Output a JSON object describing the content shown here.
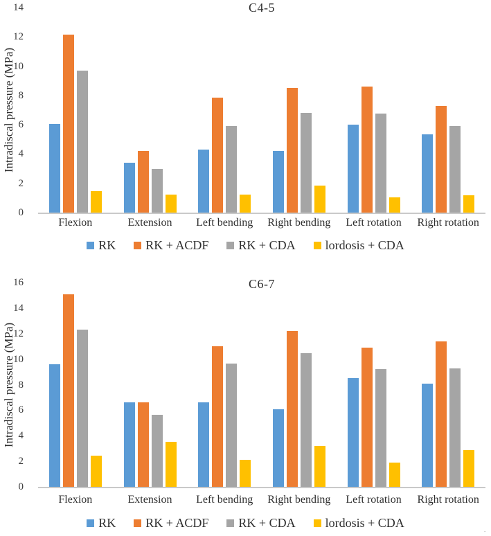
{
  "figure": {
    "background": "#ffffff",
    "corner_mark": "."
  },
  "colors": {
    "series_blue": "#5B9BD5",
    "series_orange": "#ED7D31",
    "series_gray": "#A5A5A5",
    "series_yellow": "#FFC000",
    "axis_line": "#C9C9C9",
    "text": "#2E2E2E"
  },
  "chart_data": [
    {
      "type": "bar",
      "title": "C4-5",
      "xlabel": "",
      "ylabel": "Intradiscal pressure (MPa)",
      "ylim": [
        0,
        14
      ],
      "yticks": [
        0,
        2,
        4,
        6,
        8,
        10,
        12,
        14
      ],
      "grid": false,
      "legend_position": "bottom",
      "categories": [
        "Flexion",
        "Extension",
        "Left bending",
        "Right bending",
        "Left rotation",
        "Right rotation"
      ],
      "series": [
        {
          "name": "RK",
          "color": "#5B9BD5",
          "values": [
            6.05,
            3.4,
            4.3,
            4.2,
            6.0,
            5.35
          ]
        },
        {
          "name": "RK + ACDF",
          "color": "#ED7D31",
          "values": [
            12.15,
            4.2,
            7.85,
            8.5,
            8.6,
            7.3
          ]
        },
        {
          "name": "RK + CDA",
          "color": "#A5A5A5",
          "values": [
            9.7,
            3.0,
            5.9,
            6.8,
            6.75,
            5.9
          ]
        },
        {
          "name": "lordosis + CDA",
          "color": "#FFC000",
          "values": [
            1.45,
            1.25,
            1.25,
            1.85,
            1.05,
            1.2
          ]
        }
      ]
    },
    {
      "type": "bar",
      "title": "C6-7",
      "xlabel": "",
      "ylabel": "Intradiscal pressure (MPa)",
      "ylim": [
        0,
        16
      ],
      "yticks": [
        0,
        2,
        4,
        6,
        8,
        10,
        12,
        14,
        16
      ],
      "grid": false,
      "legend_position": "bottom",
      "categories": [
        "Flexion",
        "Extension",
        "Left bending",
        "Right bending",
        "Left rotation",
        "Right rotation"
      ],
      "series": [
        {
          "name": "RK",
          "color": "#5B9BD5",
          "values": [
            9.6,
            6.6,
            6.6,
            6.05,
            8.5,
            8.1
          ]
        },
        {
          "name": "RK + ACDF",
          "color": "#ED7D31",
          "values": [
            15.1,
            6.6,
            11.0,
            12.2,
            10.9,
            11.4
          ]
        },
        {
          "name": "RK + CDA",
          "color": "#A5A5A5",
          "values": [
            12.3,
            5.65,
            9.65,
            10.45,
            9.2,
            9.25
          ]
        },
        {
          "name": "lordosis + CDA",
          "color": "#FFC000",
          "values": [
            2.45,
            3.55,
            2.1,
            3.2,
            1.9,
            2.9
          ]
        }
      ]
    }
  ]
}
